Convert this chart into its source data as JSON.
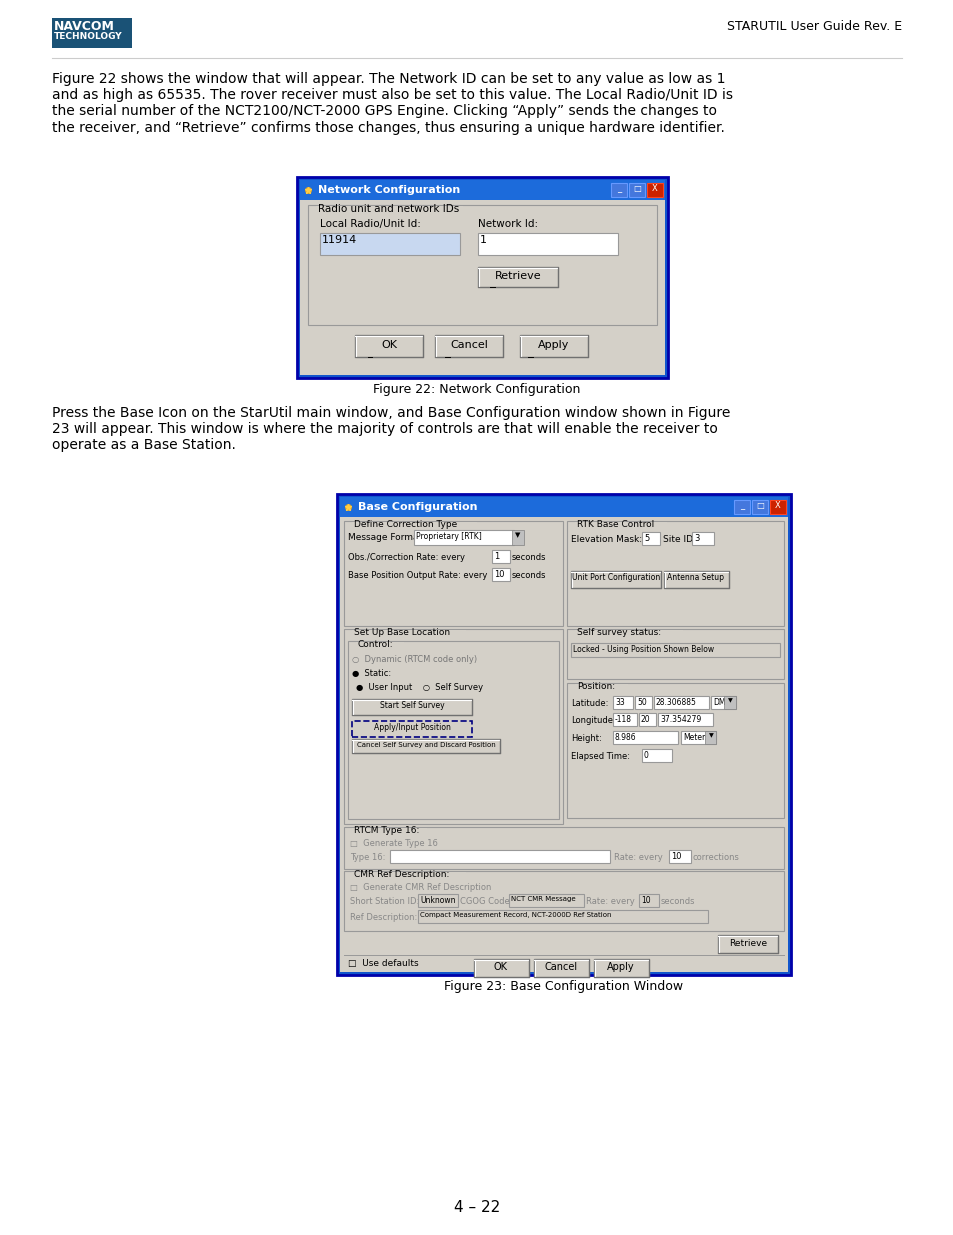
{
  "page_header_right": "STARUTIL User Guide Rev. E",
  "paragraph1": "Figure 22 shows the window that will appear. The Network ID can be set to any value as low as 1\nand as high as 65535. The rover receiver must also be set to this value. The Local Radio/Unit ID is\nthe serial number of the NCT2100/NCT-2000 GPS Engine. Clicking “Apply” sends the changes to\nthe receiver, and “Retrieve” confirms those changes, thus ensuring a unique hardware identifier.",
  "fig22_caption": "Figure 22: Network Configuration",
  "paragraph2": "Press the Base Icon on the StarUtil main window, and Base Configuration window shown in Figure\n23 will appear. This window is where the majority of controls are that will enable the receiver to\noperate as a Base Station.",
  "fig23_caption": "Figure 23: Base Configuration Window",
  "page_number": "4 – 22",
  "bg_color": "#ffffff",
  "text_color": "#000000",
  "navcom_color": "#1a5276",
  "win_title_blue": "#0000ff",
  "win_bg": "#d4d0c8",
  "win_border_blue": "#0000cc"
}
